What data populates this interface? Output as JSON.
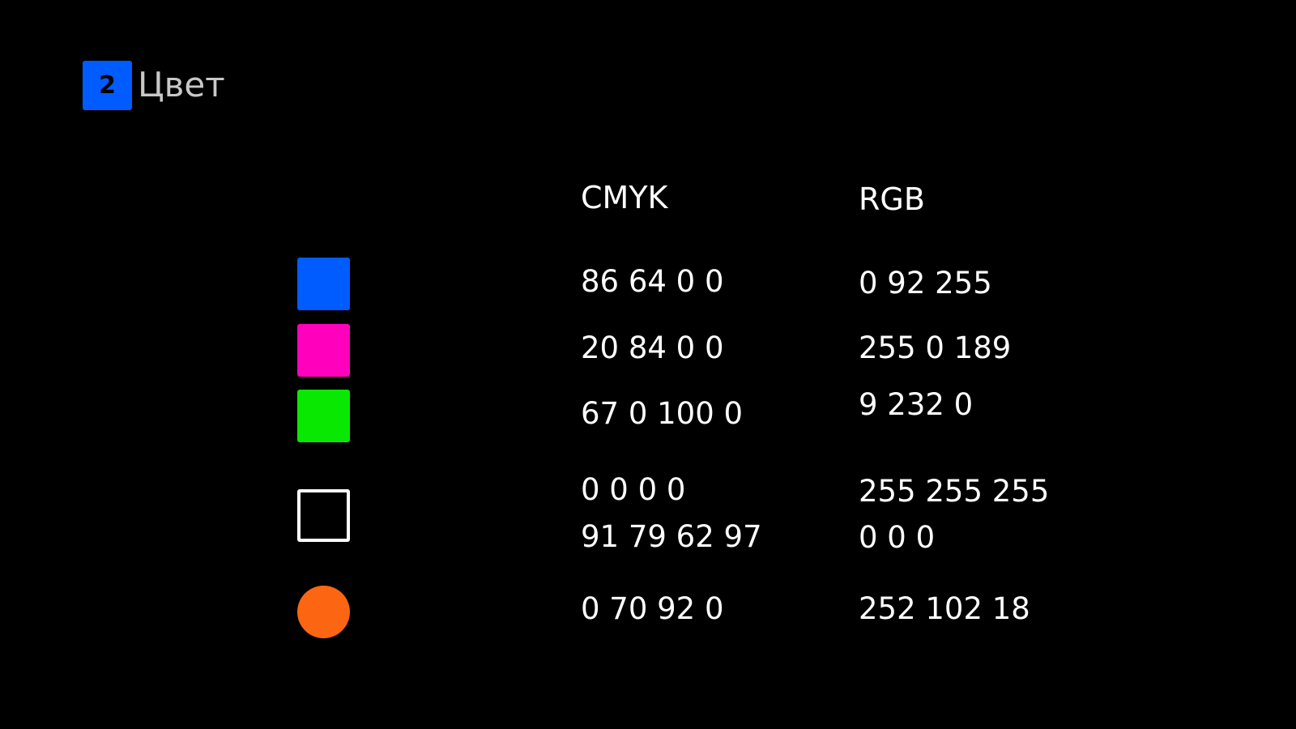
{
  "header": {
    "number": "2",
    "title": "Цвет"
  },
  "columns": {
    "cmyk": "CMYK",
    "rgb": "RGB"
  },
  "colors": [
    {
      "swatch_color": "#005cff",
      "shape": "square",
      "cmyk": "86 64 0 0",
      "rgb": "0 92 255"
    },
    {
      "swatch_color": "#ff00bd",
      "shape": "square",
      "cmyk": "20 84 0 0",
      "rgb": "255 0 189"
    },
    {
      "swatch_color": "#09e800",
      "shape": "square",
      "cmyk": "67 0 100 0",
      "rgb": "9 232 0"
    },
    {
      "swatch_color": "#ffffff",
      "shape": "square-outline",
      "cmyk": "0 0 0 0",
      "rgb": "255 255 255",
      "cmyk2": "91 79 62 97",
      "rgb2": "0 0 0"
    },
    {
      "swatch_color": "#fc6612",
      "shape": "circle",
      "cmyk": "0 70 92 0",
      "rgb": "252 102 18"
    }
  ]
}
